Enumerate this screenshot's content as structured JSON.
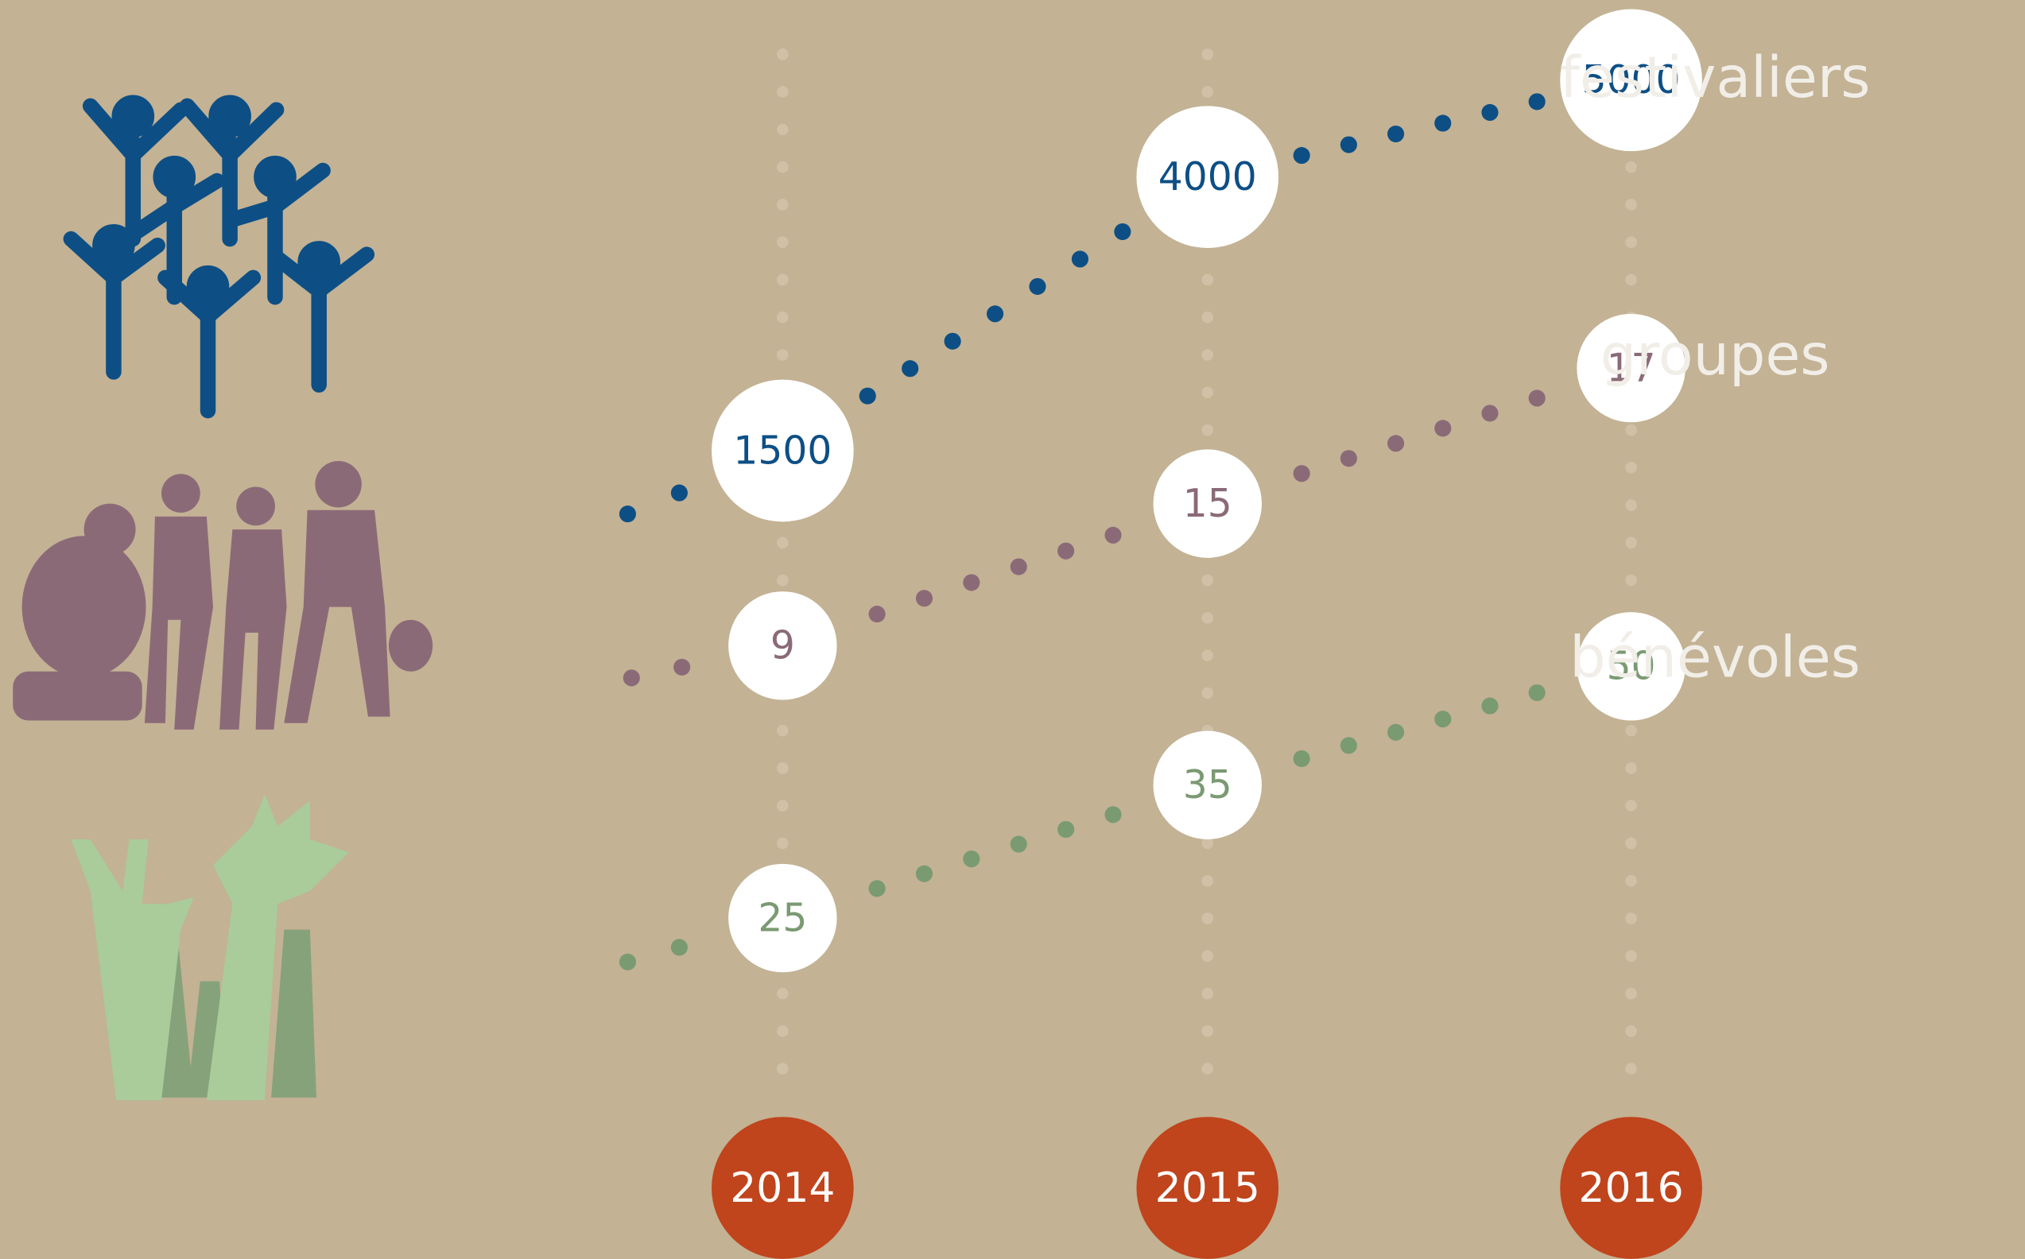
{
  "years": [
    "2014",
    "2015",
    "2016"
  ],
  "rows": [
    {
      "label": "festivaliers",
      "values": [
        1500,
        4000,
        5000
      ]
    },
    {
      "label": "groupes",
      "values": [
        9,
        15,
        17
      ]
    },
    {
      "label": "bénévoles",
      "values": [
        25,
        35,
        50
      ]
    }
  ]
}
